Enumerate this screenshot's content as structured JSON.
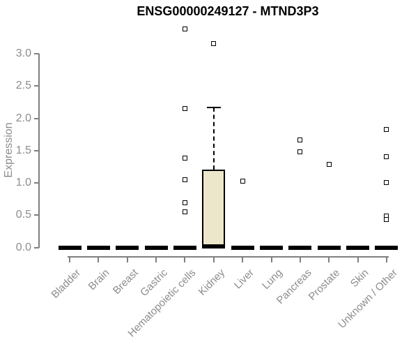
{
  "chart_data": {
    "type": "box",
    "title": "ENSG00000249127 - MTND3P3",
    "ylabel": "Expression",
    "xlabel": "",
    "ylim": [
      0.0,
      3.0
    ],
    "yticks": [
      0.0,
      0.5,
      1.0,
      1.5,
      2.0,
      2.5,
      3.0
    ],
    "ytick_labels": [
      "0.0",
      "0.5",
      "1.0",
      "1.5",
      "2.0",
      "2.5",
      "3.0"
    ],
    "grid": false,
    "legend": false,
    "categories": [
      "Bladder",
      "Brain",
      "Breast",
      "Gastric",
      "Hematopoietic cells",
      "Kidney",
      "Liver",
      "Lung",
      "Pancreas",
      "Prostate",
      "Skin",
      "Unknown / Other"
    ],
    "boxes": [
      {
        "category": "Bladder",
        "median": 0.0,
        "q1": 0.0,
        "q3": 0.0,
        "whisker_low": 0.0,
        "whisker_high": 0.0,
        "outliers": []
      },
      {
        "category": "Brain",
        "median": 0.0,
        "q1": 0.0,
        "q3": 0.0,
        "whisker_low": 0.0,
        "whisker_high": 0.0,
        "outliers": []
      },
      {
        "category": "Breast",
        "median": 0.0,
        "q1": 0.0,
        "q3": 0.0,
        "whisker_low": 0.0,
        "whisker_high": 0.0,
        "outliers": []
      },
      {
        "category": "Gastric",
        "median": 0.0,
        "q1": 0.0,
        "q3": 0.0,
        "whisker_low": 0.0,
        "whisker_high": 0.0,
        "outliers": []
      },
      {
        "category": "Hematopoietic cells",
        "median": 0.0,
        "q1": 0.0,
        "q3": 0.0,
        "whisker_low": 0.0,
        "whisker_high": 0.0,
        "outliers": [
          3.38,
          2.15,
          1.38,
          1.05,
          0.69,
          0.55
        ]
      },
      {
        "category": "Kidney",
        "median": 0.02,
        "q1": 0.0,
        "q3": 1.21,
        "whisker_low": 0.0,
        "whisker_high": 2.17,
        "outliers": [
          3.16
        ]
      },
      {
        "category": "Liver",
        "median": 0.0,
        "q1": 0.0,
        "q3": 0.0,
        "whisker_low": 0.0,
        "whisker_high": 0.0,
        "outliers": [
          1.03
        ]
      },
      {
        "category": "Lung",
        "median": 0.0,
        "q1": 0.0,
        "q3": 0.0,
        "whisker_low": 0.0,
        "whisker_high": 0.0,
        "outliers": []
      },
      {
        "category": "Pancreas",
        "median": 0.0,
        "q1": 0.0,
        "q3": 0.0,
        "whisker_low": 0.0,
        "whisker_high": 0.0,
        "outliers": [
          1.67,
          1.48
        ]
      },
      {
        "category": "Prostate",
        "median": 0.0,
        "q1": 0.0,
        "q3": 0.0,
        "whisker_low": 0.0,
        "whisker_high": 0.0,
        "outliers": [
          1.29
        ]
      },
      {
        "category": "Skin",
        "median": 0.0,
        "q1": 0.0,
        "q3": 0.0,
        "whisker_low": 0.0,
        "whisker_high": 0.0,
        "outliers": []
      },
      {
        "category": "Unknown / Other",
        "median": 0.0,
        "q1": 0.0,
        "q3": 0.0,
        "whisker_low": 0.0,
        "whisker_high": 0.0,
        "outliers": [
          1.83,
          1.41,
          1.01,
          0.49,
          0.43
        ]
      }
    ],
    "colors": {
      "box_fill": "#ECE7CB",
      "box_border": "#000000",
      "median": "#000000",
      "axis": "#7F7F7F",
      "tick_label": "#8C8C8C",
      "title": "#000000",
      "background": "#FFFFFF"
    }
  }
}
